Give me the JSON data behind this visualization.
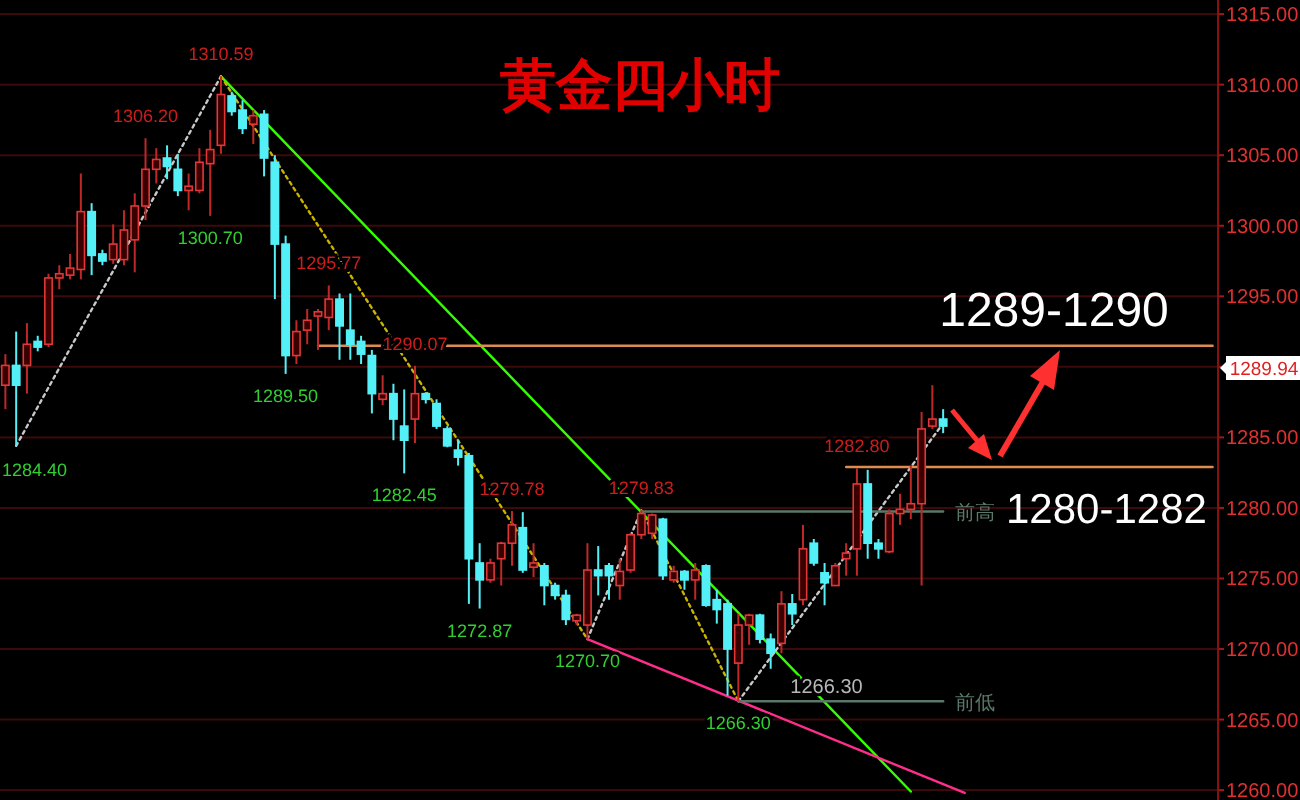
{
  "chart_data": {
    "type": "candlestick",
    "title": "黄金四小时",
    "categories": [
      null,
      null,
      null,
      null,
      null,
      null,
      null,
      null,
      null,
      null,
      null,
      null,
      null,
      null,
      null,
      null,
      null,
      null,
      null,
      null,
      null,
      null,
      null,
      null,
      null,
      null,
      null,
      null,
      null,
      null,
      null,
      null,
      null,
      null,
      null,
      null,
      null,
      null,
      null,
      null,
      null,
      null,
      null,
      null,
      null,
      null,
      null,
      null,
      null,
      null,
      null,
      null,
      null,
      null,
      null,
      null,
      null,
      null,
      null,
      null,
      null,
      null,
      null,
      null,
      null,
      null,
      null,
      null,
      null,
      null,
      null,
      null,
      null,
      null,
      null,
      null,
      null,
      null,
      null,
      null,
      null,
      null,
      null,
      null,
      null,
      null,
      null,
      null,
      null,
      null,
      null,
      null,
      null,
      null,
      null,
      null,
      null,
      null,
      null,
      null,
      null,
      null,
      null,
      null,
      null,
      null,
      null,
      null,
      null,
      null,
      null,
      null,
      null
    ],
    "ohlc": [
      [
        1288.7,
        1290.9,
        1287.0,
        1290.1
      ],
      [
        1290.1,
        1292.5,
        1284.4,
        1288.7
      ],
      [
        1290.1,
        1293.1,
        1288.1,
        1291.6
      ],
      [
        1291.8,
        1292.2,
        1291.1,
        1291.4
      ],
      [
        1291.6,
        1296.6,
        1291.4,
        1296.3
      ],
      [
        1296.3,
        1297.2,
        1295.5,
        1296.6
      ],
      [
        1296.5,
        1298.0,
        1296.2,
        1297.0
      ],
      [
        1296.9,
        1303.7,
        1296.2,
        1301.0
      ],
      [
        1301.0,
        1301.6,
        1296.5,
        1297.9
      ],
      [
        1298.0,
        1298.3,
        1297.2,
        1297.5
      ],
      [
        1297.6,
        1300.1,
        1297.3,
        1298.7
      ],
      [
        1297.6,
        1301.1,
        1297.2,
        1299.7
      ],
      [
        1299.0,
        1302.3,
        1296.7,
        1301.4
      ],
      [
        1301.4,
        1306.2,
        1300.4,
        1304.0
      ],
      [
        1304.0,
        1305.5,
        1303.0,
        1304.7
      ],
      [
        1304.8,
        1305.7,
        1303.3,
        1304.2
      ],
      [
        1304.0,
        1305.1,
        1302.1,
        1302.5
      ],
      [
        1302.5,
        1303.7,
        1301.1,
        1302.8
      ],
      [
        1302.5,
        1305.5,
        1302.3,
        1304.5
      ],
      [
        1304.4,
        1306.8,
        1300.7,
        1305.4
      ],
      [
        1305.7,
        1310.59,
        1305.1,
        1309.3
      ],
      [
        1309.2,
        1309.5,
        1307.8,
        1308.1
      ],
      [
        1308.2,
        1308.9,
        1306.5,
        1306.9
      ],
      [
        1307.2,
        1308.2,
        1305.8,
        1307.8
      ],
      [
        1307.9,
        1308.2,
        1303.5,
        1304.8
      ],
      [
        1304.5,
        1305.0,
        1294.8,
        1298.7
      ],
      [
        1298.7,
        1299.3,
        1289.5,
        1290.8
      ],
      [
        1290.8,
        1293.3,
        1290.2,
        1292.5
      ],
      [
        1292.6,
        1294.1,
        1291.6,
        1293.3
      ],
      [
        1293.6,
        1294.1,
        1291.2,
        1293.9
      ],
      [
        1293.5,
        1295.77,
        1292.6,
        1294.8
      ],
      [
        1294.8,
        1295.2,
        1290.5,
        1292.9
      ],
      [
        1292.6,
        1295.2,
        1290.5,
        1291.6
      ],
      [
        1291.8,
        1292.2,
        1290.2,
        1290.9
      ],
      [
        1290.8,
        1291.2,
        1286.7,
        1288.1
      ],
      [
        1287.7,
        1289.4,
        1287.3,
        1288.1
      ],
      [
        1288.1,
        1288.8,
        1284.8,
        1286.3
      ],
      [
        1285.8,
        1288.4,
        1282.45,
        1284.8
      ],
      [
        1286.3,
        1290.07,
        1284.6,
        1288.1
      ],
      [
        1288.1,
        1288.2,
        1287.4,
        1287.7
      ],
      [
        1287.4,
        1287.7,
        1285.6,
        1285.8
      ],
      [
        1285.6,
        1285.8,
        1284.3,
        1284.4
      ],
      [
        1284.1,
        1284.8,
        1283.0,
        1283.6
      ],
      [
        1283.7,
        1283.9,
        1273.2,
        1276.4
      ],
      [
        1276.1,
        1277.5,
        1272.87,
        1274.9
      ],
      [
        1274.9,
        1276.4,
        1274.7,
        1276.1
      ],
      [
        1276.4,
        1277.6,
        1274.5,
        1277.5
      ],
      [
        1277.5,
        1279.78,
        1275.9,
        1278.8
      ],
      [
        1278.6,
        1279.7,
        1275.4,
        1275.6
      ],
      [
        1275.8,
        1277.5,
        1275.1,
        1276.1
      ],
      [
        1275.9,
        1276.1,
        1273.1,
        1274.5
      ],
      [
        1274.5,
        1274.7,
        1273.5,
        1273.8
      ],
      [
        1273.8,
        1274.2,
        1271.7,
        1272.1
      ],
      [
        1272.0,
        1272.5,
        1271.7,
        1272.4
      ],
      [
        1271.7,
        1277.5,
        1270.7,
        1275.6
      ],
      [
        1275.6,
        1277.3,
        1273.8,
        1275.2
      ],
      [
        1275.9,
        1276.1,
        1273.5,
        1275.2
      ],
      [
        1274.5,
        1276.4,
        1273.5,
        1275.5
      ],
      [
        1275.6,
        1278.2,
        1275.4,
        1278.1
      ],
      [
        1278.1,
        1279.83,
        1277.8,
        1279.6
      ],
      [
        1278.2,
        1279.6,
        1277.8,
        1279.5
      ],
      [
        1279.2,
        1279.3,
        1274.9,
        1275.2
      ],
      [
        1274.9,
        1275.9,
        1274.7,
        1275.5
      ],
      [
        1275.5,
        1275.6,
        1274.2,
        1274.9
      ],
      [
        1274.9,
        1276.1,
        1273.5,
        1275.6
      ],
      [
        1275.9,
        1276.0,
        1273.0,
        1273.1
      ],
      [
        1273.5,
        1274.2,
        1271.8,
        1272.8
      ],
      [
        1273.2,
        1273.5,
        1266.7,
        1270.0
      ],
      [
        1269.0,
        1272.5,
        1266.3,
        1271.7
      ],
      [
        1271.7,
        1272.5,
        1270.3,
        1272.4
      ],
      [
        1272.4,
        1272.5,
        1270.4,
        1270.7
      ],
      [
        1270.7,
        1271.1,
        1268.6,
        1269.7
      ],
      [
        1270.4,
        1274.1,
        1269.7,
        1273.2
      ],
      [
        1273.2,
        1273.9,
        1271.7,
        1272.5
      ],
      [
        1273.5,
        1278.8,
        1273.1,
        1277.1
      ],
      [
        1277.5,
        1277.8,
        1275.9,
        1276.1
      ],
      [
        1275.4,
        1276.1,
        1273.1,
        1274.7
      ],
      [
        1274.5,
        1276.1,
        1274.5,
        1275.9
      ],
      [
        1276.4,
        1277.5,
        1275.2,
        1276.8
      ],
      [
        1277.1,
        1282.8,
        1275.2,
        1281.7
      ],
      [
        1281.7,
        1282.7,
        1276.4,
        1277.5
      ],
      [
        1277.5,
        1277.8,
        1276.4,
        1277.1
      ],
      [
        1276.9,
        1279.9,
        1276.8,
        1279.6
      ],
      [
        1279.6,
        1281.0,
        1278.8,
        1279.9
      ],
      [
        1279.9,
        1283.0,
        1279.2,
        1280.3
      ],
      [
        1280.3,
        1286.8,
        1274.5,
        1285.6
      ],
      [
        1285.8,
        1288.7,
        1285.6,
        1286.3
      ],
      [
        1286.3,
        1287.0,
        1285.3,
        1285.8
      ],
      null,
      null,
      null,
      null,
      null,
      null,
      null,
      null,
      null,
      null,
      null,
      null,
      null,
      null,
      null,
      null,
      null,
      null,
      null,
      null,
      null,
      null,
      null,
      null,
      null
    ],
    "series": [
      {
        "type": "line",
        "values": [
          null,
          1284.4,
          null,
          null,
          null,
          null,
          null,
          null,
          null,
          null,
          null,
          null,
          null,
          null,
          null,
          null,
          null,
          null,
          null,
          null,
          1310.59,
          null,
          null,
          null,
          null,
          null,
          null,
          null,
          null,
          null,
          null,
          null,
          null,
          null,
          null,
          null,
          null,
          null,
          null,
          null,
          null,
          null,
          null,
          null,
          null,
          null,
          null,
          null,
          null,
          null,
          null,
          null,
          null,
          null,
          null,
          null,
          null,
          null,
          null,
          null,
          null,
          null,
          null,
          null,
          null,
          null,
          null,
          null,
          null,
          null,
          null,
          null,
          null,
          null,
          null,
          null,
          null,
          null,
          null,
          null,
          null,
          null,
          null,
          null,
          null,
          null,
          null,
          null,
          null,
          null,
          null,
          null,
          null,
          null,
          null,
          null,
          null,
          null,
          null,
          null,
          null,
          null,
          null,
          null,
          null,
          null,
          null,
          null,
          null,
          null,
          null,
          null,
          null
        ],
        "color": "#c8c8c8",
        "line_style": "dotted"
      },
      {
        "type": "line",
        "values": [
          null,
          null,
          null,
          null,
          null,
          null,
          null,
          null,
          null,
          null,
          null,
          null,
          null,
          null,
          null,
          null,
          null,
          null,
          null,
          null,
          1310.59,
          null,
          null,
          null,
          null,
          null,
          null,
          null,
          null,
          null,
          null,
          null,
          null,
          null,
          null,
          null,
          null,
          null,
          null,
          null,
          null,
          null,
          null,
          null,
          null,
          null,
          null,
          null,
          null,
          null,
          null,
          null,
          null,
          null,
          null,
          null,
          null,
          null,
          null,
          null,
          null,
          null,
          null,
          null,
          null,
          null,
          null,
          null,
          null,
          null,
          null,
          null,
          null,
          null,
          null,
          null,
          null,
          null,
          null,
          null,
          null,
          null,
          null,
          null,
          1259.9,
          null,
          null,
          null,
          null,
          null,
          null,
          null,
          null,
          null,
          null,
          null,
          null,
          null,
          null,
          null,
          null,
          null,
          null,
          null,
          null,
          null,
          null,
          null,
          null,
          null,
          null,
          null,
          null
        ],
        "color": "#33ff00",
        "line_style": "solid"
      },
      {
        "type": "line",
        "values": [
          null,
          null,
          null,
          null,
          null,
          null,
          null,
          null,
          null,
          null,
          null,
          null,
          null,
          null,
          null,
          null,
          null,
          null,
          null,
          null,
          1310.59,
          null,
          null,
          null,
          null,
          null,
          null,
          null,
          null,
          null,
          null,
          null,
          null,
          null,
          null,
          null,
          null,
          null,
          null,
          null,
          null,
          null,
          null,
          null,
          null,
          null,
          null,
          null,
          null,
          null,
          null,
          null,
          null,
          null,
          1270.7,
          null,
          null,
          null,
          null,
          null,
          null,
          null,
          null,
          null,
          null,
          null,
          null,
          null,
          null,
          null,
          null,
          null,
          null,
          null,
          null,
          null,
          null,
          null,
          null,
          null,
          null,
          null,
          null,
          null,
          null,
          null,
          null,
          null,
          null,
          null,
          null,
          null,
          null,
          null,
          null,
          null,
          null,
          null,
          null,
          null,
          null,
          null,
          null,
          null,
          null,
          null,
          null,
          null,
          null,
          null,
          null,
          null,
          null
        ],
        "color": "#c8b400",
        "line_style": "dotted"
      },
      {
        "type": "line",
        "values": [
          null,
          null,
          null,
          null,
          null,
          null,
          null,
          null,
          null,
          null,
          null,
          null,
          null,
          null,
          null,
          null,
          null,
          null,
          null,
          null,
          null,
          null,
          null,
          null,
          null,
          null,
          null,
          null,
          null,
          null,
          null,
          null,
          null,
          null,
          null,
          null,
          null,
          null,
          null,
          null,
          null,
          null,
          null,
          null,
          null,
          null,
          null,
          null,
          null,
          null,
          null,
          null,
          null,
          null,
          1270.7,
          null,
          null,
          null,
          null,
          1279.83,
          null,
          null,
          null,
          null,
          null,
          null,
          null,
          null,
          null,
          null,
          null,
          null,
          null,
          null,
          null,
          null,
          null,
          null,
          null,
          null,
          null,
          null,
          null,
          null,
          null,
          null,
          null,
          null,
          null,
          null,
          null,
          null,
          null,
          null,
          null,
          null,
          null,
          null,
          null,
          null,
          null,
          null,
          null,
          null,
          null,
          null,
          null,
          null,
          null,
          null,
          null,
          null,
          null
        ],
        "color": "#c8c8c8",
        "line_style": "dotted"
      },
      {
        "type": "line",
        "values": [
          null,
          null,
          null,
          null,
          null,
          null,
          null,
          null,
          null,
          null,
          null,
          null,
          null,
          null,
          null,
          null,
          null,
          null,
          null,
          null,
          null,
          null,
          null,
          null,
          null,
          null,
          null,
          null,
          null,
          null,
          null,
          null,
          null,
          null,
          null,
          null,
          null,
          null,
          null,
          null,
          null,
          null,
          null,
          null,
          null,
          null,
          null,
          null,
          null,
          null,
          null,
          null,
          null,
          null,
          null,
          null,
          null,
          null,
          null,
          1279.83,
          null,
          null,
          null,
          null,
          null,
          null,
          null,
          null,
          1266.3,
          null,
          null,
          null,
          null,
          null,
          null,
          null,
          null,
          null,
          null,
          null,
          null,
          null,
          null,
          null,
          null,
          null,
          null,
          null,
          null,
          null,
          null,
          null,
          null,
          null,
          null,
          null,
          null,
          null,
          null,
          null,
          null,
          null,
          null,
          null,
          null,
          null,
          null,
          null,
          null,
          null,
          null,
          null,
          null
        ],
        "color": "#c8b400",
        "line_style": "dotted"
      },
      {
        "type": "line",
        "values": [
          null,
          null,
          null,
          null,
          null,
          null,
          null,
          null,
          null,
          null,
          null,
          null,
          null,
          null,
          null,
          null,
          null,
          null,
          null,
          null,
          null,
          null,
          null,
          null,
          null,
          null,
          null,
          null,
          null,
          null,
          null,
          null,
          null,
          null,
          null,
          null,
          null,
          null,
          null,
          null,
          null,
          null,
          null,
          null,
          null,
          null,
          null,
          null,
          null,
          null,
          null,
          null,
          null,
          null,
          null,
          null,
          null,
          null,
          null,
          null,
          null,
          null,
          null,
          null,
          null,
          null,
          null,
          null,
          1266.3,
          null,
          null,
          null,
          null,
          null,
          null,
          null,
          null,
          null,
          null,
          null,
          null,
          null,
          null,
          null,
          null,
          null,
          null,
          1286.0,
          null,
          null,
          null,
          null,
          null,
          null,
          null,
          null,
          null,
          null,
          null,
          null,
          null,
          null,
          null,
          null,
          null,
          null,
          null,
          null,
          null,
          null,
          null,
          null,
          null
        ],
        "color": "#c8c8c8",
        "line_style": "dotted"
      },
      {
        "type": "line",
        "values": [
          null,
          null,
          null,
          null,
          null,
          null,
          null,
          null,
          null,
          null,
          null,
          null,
          null,
          null,
          null,
          null,
          null,
          null,
          null,
          null,
          null,
          null,
          null,
          null,
          null,
          null,
          null,
          null,
          null,
          null,
          null,
          null,
          null,
          null,
          null,
          null,
          null,
          null,
          null,
          null,
          null,
          null,
          null,
          null,
          null,
          null,
          null,
          null,
          null,
          null,
          null,
          null,
          null,
          null,
          1270.7,
          null,
          null,
          null,
          null,
          null,
          null,
          null,
          null,
          null,
          null,
          null,
          null,
          null,
          null,
          null,
          null,
          null,
          null,
          null,
          null,
          null,
          null,
          null,
          null,
          null,
          null,
          null,
          null,
          null,
          null,
          null,
          null,
          null,
          null,
          1259.8,
          null,
          null,
          null,
          null,
          null,
          null,
          null,
          null,
          null,
          null,
          null,
          null,
          null,
          null,
          null,
          null,
          null,
          null,
          null,
          null,
          null,
          null,
          null
        ],
        "color": "#ff2d8c",
        "line_style": "solid"
      },
      {
        "type": "line",
        "name": "1289-1290",
        "values": [
          null,
          null,
          null,
          null,
          null,
          null,
          null,
          null,
          null,
          null,
          null,
          null,
          null,
          null,
          null,
          null,
          null,
          null,
          null,
          null,
          null,
          null,
          null,
          null,
          null,
          null,
          null,
          null,
          null,
          1291.5,
          null,
          null,
          null,
          null,
          null,
          null,
          null,
          null,
          null,
          null,
          null,
          null,
          null,
          null,
          null,
          null,
          null,
          null,
          null,
          null,
          null,
          null,
          null,
          null,
          null,
          null,
          null,
          null,
          null,
          null,
          null,
          null,
          null,
          null,
          null,
          null,
          null,
          null,
          null,
          null,
          null,
          null,
          null,
          null,
          null,
          null,
          null,
          null,
          null,
          null,
          null,
          null,
          null,
          null,
          null,
          null,
          null,
          null,
          null,
          null,
          null,
          null,
          null,
          null,
          null,
          null,
          null,
          null,
          null,
          null,
          null,
          null,
          null,
          null,
          null,
          null,
          null,
          null,
          null,
          null,
          null,
          null,
          1291.5
        ],
        "color": "#e08c50",
        "line_style": "solid"
      },
      {
        "type": "line",
        "name": "1280-1282",
        "values": [
          null,
          null,
          null,
          null,
          null,
          null,
          null,
          null,
          null,
          null,
          null,
          null,
          null,
          null,
          null,
          null,
          null,
          null,
          null,
          null,
          null,
          null,
          null,
          null,
          null,
          null,
          null,
          null,
          null,
          null,
          null,
          null,
          null,
          null,
          null,
          null,
          null,
          null,
          null,
          null,
          null,
          null,
          null,
          null,
          null,
          null,
          null,
          null,
          null,
          null,
          null,
          null,
          null,
          null,
          null,
          null,
          null,
          null,
          null,
          null,
          null,
          null,
          null,
          null,
          null,
          null,
          null,
          null,
          null,
          null,
          null,
          null,
          null,
          null,
          null,
          null,
          null,
          null,
          1282.9,
          null,
          null,
          null,
          null,
          null,
          null,
          null,
          null,
          null,
          null,
          null,
          null,
          null,
          null,
          null,
          null,
          null,
          null,
          null,
          null,
          null,
          null,
          null,
          null,
          null,
          null,
          null,
          null,
          null,
          null,
          null,
          null,
          null,
          1282.9
        ],
        "color": "#e08c50",
        "line_style": "solid"
      },
      {
        "type": "line",
        "name": "前高",
        "values": [
          null,
          null,
          null,
          null,
          null,
          null,
          null,
          null,
          null,
          null,
          null,
          null,
          null,
          null,
          null,
          null,
          null,
          null,
          null,
          null,
          null,
          null,
          null,
          null,
          null,
          null,
          null,
          null,
          null,
          null,
          null,
          null,
          null,
          null,
          null,
          null,
          null,
          null,
          null,
          null,
          null,
          null,
          null,
          null,
          null,
          null,
          null,
          null,
          null,
          null,
          null,
          null,
          null,
          null,
          null,
          null,
          null,
          null,
          null,
          1279.75,
          null,
          null,
          null,
          null,
          null,
          null,
          null,
          null,
          null,
          null,
          null,
          null,
          null,
          null,
          null,
          null,
          null,
          null,
          null,
          null,
          null,
          null,
          null,
          null,
          null,
          null,
          null,
          1279.75,
          null,
          null,
          null,
          null,
          null,
          null,
          null,
          null,
          null,
          null,
          null,
          null,
          null,
          null,
          null,
          null,
          null,
          null,
          null,
          null,
          null,
          null,
          null,
          null,
          null
        ],
        "color": "#5a7868",
        "line_style": "solid"
      },
      {
        "type": "line",
        "name": "前低",
        "values": [
          null,
          null,
          null,
          null,
          null,
          null,
          null,
          null,
          null,
          null,
          null,
          null,
          null,
          null,
          null,
          null,
          null,
          null,
          null,
          null,
          null,
          null,
          null,
          null,
          null,
          null,
          null,
          null,
          null,
          null,
          null,
          null,
          null,
          null,
          null,
          null,
          null,
          null,
          null,
          null,
          null,
          null,
          null,
          null,
          null,
          null,
          null,
          null,
          null,
          null,
          null,
          null,
          null,
          null,
          null,
          null,
          null,
          null,
          null,
          null,
          null,
          null,
          null,
          null,
          null,
          null,
          null,
          null,
          1266.3,
          null,
          null,
          null,
          null,
          null,
          null,
          null,
          null,
          null,
          null,
          null,
          null,
          null,
          null,
          null,
          null,
          null,
          null,
          1266.3,
          null,
          null,
          null,
          null,
          null,
          null,
          null,
          null,
          null,
          null,
          null,
          null,
          null,
          null,
          null,
          null,
          null,
          null,
          null,
          null,
          null,
          null,
          null,
          null,
          null
        ],
        "color": "#5a7868",
        "line_style": "solid"
      }
    ],
    "ylim": [
      1259.3,
      1316.0
    ],
    "yticks": [
      {
        "value": 1260,
        "label": "1260.00"
      },
      {
        "value": 1265,
        "label": "1265.00"
      },
      {
        "value": 1270,
        "label": "1270.00"
      },
      {
        "value": 1275,
        "label": "1275.00"
      },
      {
        "value": 1280,
        "label": "1280.00"
      },
      {
        "value": 1285,
        "label": "1285.00"
      },
      {
        "value": 1290,
        "label": null
      },
      {
        "value": 1295,
        "label": "1295.00"
      },
      {
        "value": 1300,
        "label": "1300.00"
      },
      {
        "value": 1305,
        "label": "1305.00"
      },
      {
        "value": 1310,
        "label": "1310.00"
      },
      {
        "value": 1315,
        "label": "1315.00"
      }
    ],
    "grid": "y",
    "tick_labels": "y",
    "annotations": [
      "1284.40",
      {
        "text": "1306.20",
        "y": 1306.2
      },
      {
        "text": "1300.70",
        "y": 1300.7
      },
      {
        "text": "1310.59",
        "y": 1310.59
      },
      {
        "text": "1289.50",
        "y": 1289.5
      },
      {
        "text": "1295.77",
        "y": 1295.77
      },
      {
        "text": "1290.07",
        "y": 1290.07
      },
      {
        "text": "1282.45",
        "y": 1282.45
      },
      {
        "text": "1272.87",
        "y": 1272.87
      },
      {
        "text": "1279.78",
        "y": 1279.78
      },
      {
        "text": "1270.70",
        "y": 1270.7
      },
      {
        "text": "1279.83",
        "y": 1279.83
      },
      {
        "text": "1266.30",
        "y": 1266.3
      },
      {
        "text": "1266.30",
        "y": 1266.3
      },
      {
        "text": "1282.80",
        "y": 1282.8
      },
      "1289.94"
    ]
  }
}
